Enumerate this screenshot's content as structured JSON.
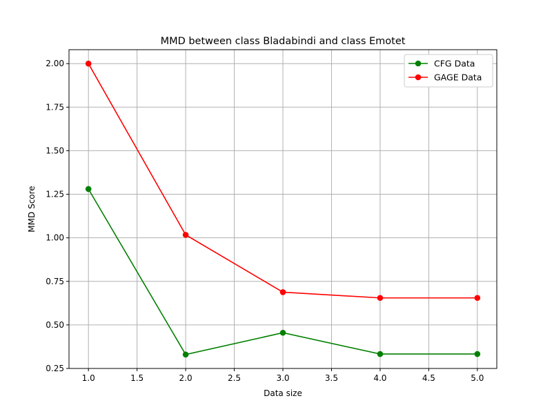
{
  "chart_data": {
    "type": "line",
    "title": "MMD between class Bladabindi and class Emotet",
    "xlabel": "Data size",
    "ylabel": "MMD Score",
    "xlim": [
      0.8,
      5.2
    ],
    "ylim": [
      0.25,
      2.08
    ],
    "xticks": [
      1.0,
      1.5,
      2.0,
      2.5,
      3.0,
      3.5,
      4.0,
      4.5,
      5.0
    ],
    "xtick_labels": [
      "1.0",
      "1.5",
      "2.0",
      "2.5",
      "3.0",
      "3.5",
      "4.0",
      "4.5",
      "5.0"
    ],
    "yticks": [
      0.25,
      0.5,
      0.75,
      1.0,
      1.25,
      1.5,
      1.75,
      2.0
    ],
    "ytick_labels": [
      "0.25",
      "0.50",
      "0.75",
      "1.00",
      "1.25",
      "1.50",
      "1.75",
      "2.00"
    ],
    "grid": true,
    "legend_position": "top-right",
    "x": [
      1,
      2,
      3,
      4,
      5
    ],
    "series": [
      {
        "name": "CFG Data",
        "color": "#008000",
        "marker": "circle",
        "values": [
          1.28,
          0.33,
          0.455,
          0.333,
          0.333
        ]
      },
      {
        "name": "GAGE Data",
        "color": "#ff0000",
        "marker": "circle",
        "values": [
          2.0,
          1.017,
          0.688,
          0.655,
          0.655
        ]
      }
    ]
  }
}
